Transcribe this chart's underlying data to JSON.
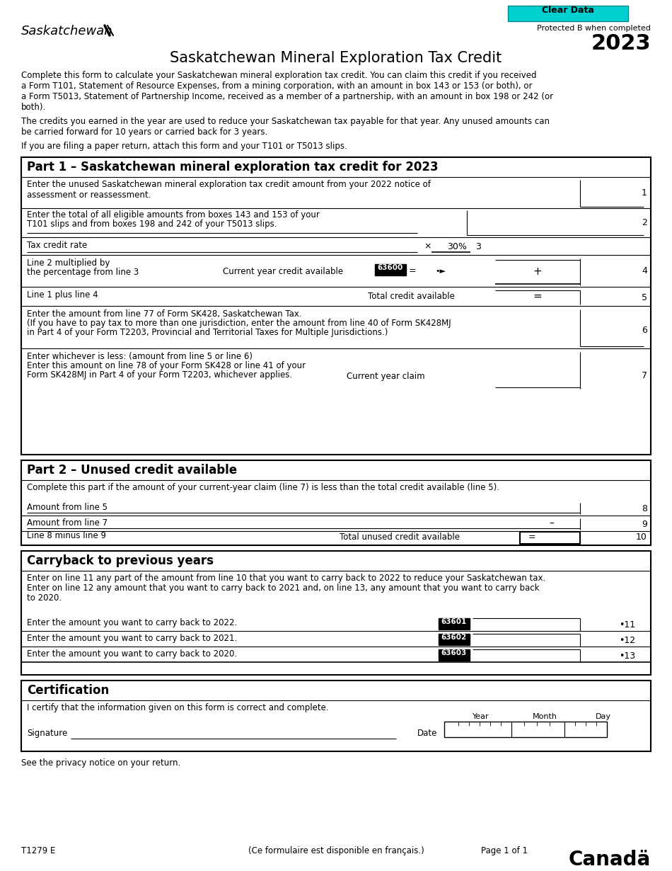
{
  "title": "Saskatchewan Mineral Exploration Tax Credit",
  "year": "2023",
  "clear_data_btn": "Clear Data",
  "protected": "Protected B when completed",
  "form_number": "T1279 E",
  "french": "(Ce formulaire est disponible en français.)",
  "page": "Page 1 of 1",
  "privacy": "See the privacy notice on your return.",
  "intro1": "Complete this form to calculate your Saskatchewan mineral exploration tax credit. You can claim this credit if you received\na Form T101, Statement of Resource Expenses, from a mining corporation, with an amount in box 143 or 153 (or both), or\na Form T5013, Statement of Partnership Income, received as a member of a partnership, with an amount in box 198 or 242 (or\nboth).",
  "intro2": "The credits you earned in the year are used to reduce your Saskatchewan tax payable for that year. Any unused amounts can\nbe carried forward for 10 years or carried back for 3 years.",
  "intro3": "If you are filing a paper return, attach this form and your T101 or T5013 slips.",
  "part1_title": "Part 1 – Saskatchewan mineral exploration tax credit for 2023",
  "part1_line1": "Enter the unused Saskatchewan mineral exploration tax credit amount from your 2022 notice of\nassessment or reassessment.",
  "part1_line2a": "Enter the total of all eligible amounts from boxes 143 and 153 of your",
  "part1_line2b": "T101 slips and from boxes 198 and 242 of your T5013 slips.",
  "part1_line3": "Tax credit rate",
  "part1_line4a": "Line 2 multiplied by",
  "part1_line4b": "the percentage from line 3",
  "part1_line4c": "Current year credit available",
  "part1_line4_code": "63600",
  "part1_line5": "Line 1 plus line 4",
  "part1_line5b": "Total credit available",
  "part1_line6a": "Enter the amount from line 77 of Form SK428, Saskatchewan Tax.",
  "part1_line6b": "(If you have to pay tax to more than one jurisdiction, enter the amount from line 40 of Form SK428MJ",
  "part1_line6c": "in Part 4 of your Form T2203, Provincial and Territorial Taxes for Multiple Jurisdictions.)",
  "part1_line7a": "Enter whichever is less: (amount from line 5 or line 6)",
  "part1_line7b": "Enter this amount on line 78 of your Form SK428 or line 41 of your",
  "part1_line7c": "Form SK428MJ in Part 4 of your Form T2203, whichever applies.",
  "part1_line7d": "Current year claim",
  "part2_title": "Part 2 – Unused credit available",
  "part2_intro": "Complete this part if the amount of your current-year claim (line 7) is less than the total credit available (line 5).",
  "part2_line8": "Amount from line 5",
  "part2_line9": "Amount from line 7",
  "part2_line10": "Line 8 minus line 9",
  "part2_line10b": "Total unused credit available",
  "carryback_title": "Carryback to previous years",
  "carryback_intro1": "Enter on line 11 any part of the amount from line 10 that you want to carry back to 2022 to reduce your Saskatchewan tax.",
  "carryback_intro2": "Enter on line 12 any amount that you want to carry back to 2021 and, on line 13, any amount that you want to carry back",
  "carryback_intro3": "to 2020.",
  "carryback_line11": "Enter the amount you want to carry back to 2022.",
  "carryback_line11_code": "63601",
  "carryback_line12": "Enter the amount you want to carry back to 2021.",
  "carryback_line12_code": "63602",
  "carryback_line13": "Enter the amount you want to carry back to 2020.",
  "carryback_line13_code": "63603",
  "cert_title": "Certification",
  "cert_intro": "I certify that the information given on this form is correct and complete.",
  "cert_sig": "Signature",
  "cert_date": "Date",
  "cert_year": "Year",
  "cert_month": "Month",
  "cert_day": "Day",
  "bg_color": "#ffffff",
  "cyan_color": "#00d0d0"
}
